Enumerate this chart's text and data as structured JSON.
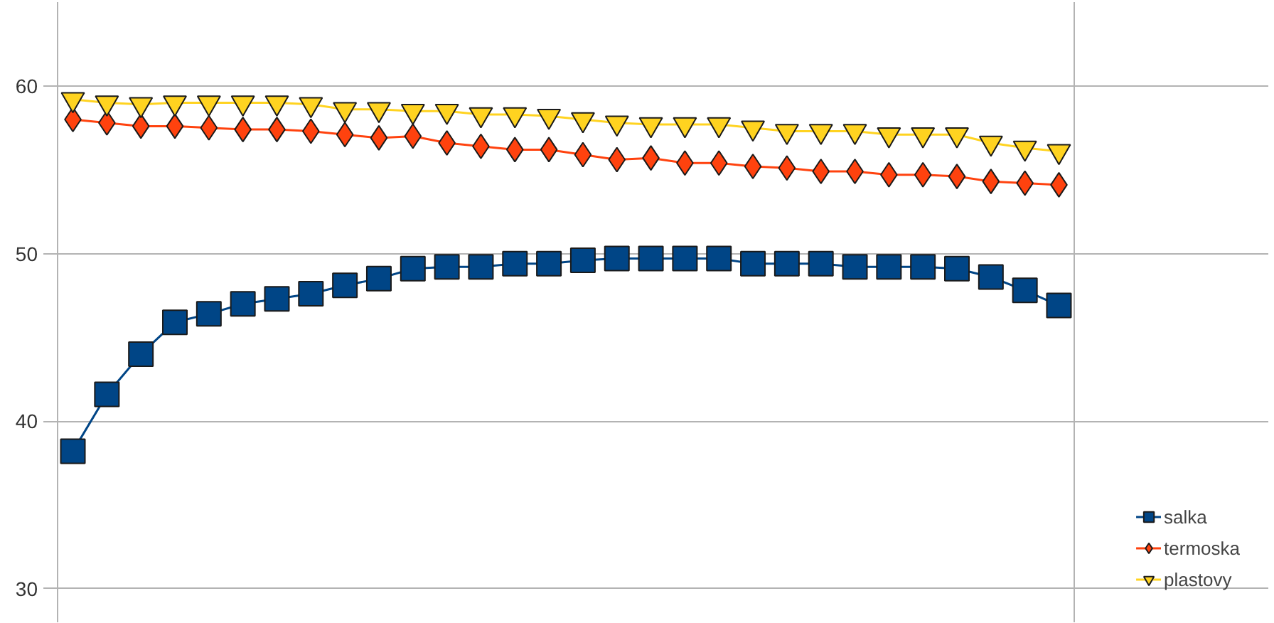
{
  "chart_data": {
    "type": "line",
    "categories": [
      null,
      null,
      null,
      null,
      null,
      null,
      null,
      null,
      null,
      null,
      null,
      null,
      null,
      null,
      null,
      null,
      null,
      null,
      null,
      null,
      null,
      null,
      null,
      null,
      null,
      null,
      null,
      null,
      null,
      null
    ],
    "ylim": [
      28,
      65
    ],
    "yticks": [
      30,
      40,
      50,
      60
    ],
    "grid": "y",
    "legend": "right",
    "tick_labels": "y",
    "series": [
      {
        "name": "salka",
        "color": "#004586",
        "marker": "square",
        "values": [
          38.2,
          41.6,
          44.0,
          45.9,
          46.4,
          47.0,
          47.3,
          47.6,
          48.1,
          48.5,
          49.1,
          49.2,
          49.2,
          49.4,
          49.4,
          49.6,
          49.7,
          49.7,
          49.7,
          49.7,
          49.4,
          49.4,
          49.4,
          49.2,
          49.2,
          49.2,
          49.1,
          48.6,
          47.8,
          46.9
        ]
      },
      {
        "name": "termoska",
        "color": "#ff420e",
        "marker": "diamond",
        "values": [
          58.0,
          57.8,
          57.6,
          57.6,
          57.5,
          57.4,
          57.4,
          57.3,
          57.1,
          56.9,
          57.0,
          56.6,
          56.4,
          56.2,
          56.2,
          55.9,
          55.6,
          55.7,
          55.4,
          55.4,
          55.2,
          55.1,
          54.9,
          54.9,
          54.7,
          54.7,
          54.6,
          54.3,
          54.2,
          54.1
        ]
      },
      {
        "name": "plastovy",
        "color": "#ffd320",
        "marker": "triangle",
        "values": [
          59.2,
          59.0,
          58.9,
          59.0,
          59.0,
          59.0,
          59.0,
          58.9,
          58.6,
          58.6,
          58.5,
          58.5,
          58.3,
          58.3,
          58.2,
          58.0,
          57.8,
          57.7,
          57.7,
          57.7,
          57.5,
          57.3,
          57.3,
          57.3,
          57.1,
          57.1,
          57.1,
          56.6,
          56.3,
          56.1
        ]
      }
    ]
  }
}
